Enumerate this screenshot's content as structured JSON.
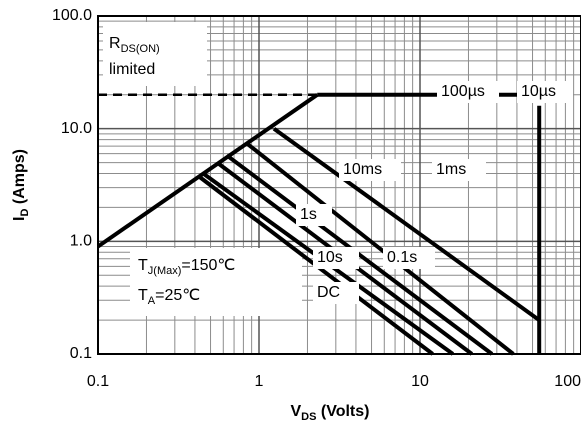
{
  "chart_data": {
    "type": "line",
    "x_log": true,
    "y_log": true,
    "grid": true,
    "minor_grid": true,
    "xlim": [
      0.1,
      100
    ],
    "ylim": [
      0.1,
      100
    ],
    "xticks": [
      0.1,
      1,
      10,
      100
    ],
    "yticks": [
      0.1,
      {
        "value": 1,
        "label": "1.0"
      },
      {
        "value": 10,
        "label": "10.0"
      },
      {
        "value": 100,
        "label": "100.0"
      }
    ],
    "x_label": {
      "main": "V",
      "sub": "DS",
      "rest": " (Volts)"
    },
    "y_label": {
      "main": "I",
      "sub": "D",
      "rest": " (Amps)"
    },
    "rds_note": {
      "main": "R",
      "sub": "DS(ON)",
      "line2": "limited"
    },
    "conditions": [
      {
        "main": "T",
        "sub": "J(Max)",
        "rest": "=150℃"
      },
      {
        "main": "T",
        "sub": "A",
        "rest": "=25℃"
      }
    ],
    "series": [
      {
        "color": "#000000",
        "x": [
          0.1,
          2.3
        ],
        "values": [
          0.9,
          20
        ]
      },
      {
        "color": "#000000",
        "dashed": true,
        "x": [
          0.1,
          2.3
        ],
        "values": [
          20,
          20
        ]
      },
      {
        "name": "100µs",
        "color": "#000000",
        "x": [
          2.3,
          55
        ],
        "values": [
          20,
          20
        ]
      },
      {
        "name": "10µs",
        "color": "#000000",
        "x": [
          55,
          55
        ],
        "values": [
          16,
          0.1
        ]
      },
      {
        "name": "1ms",
        "color": "#000000",
        "x": [
          1.24,
          55
        ],
        "values": [
          10,
          0.2
        ]
      },
      {
        "name": "10ms",
        "color": "#000000",
        "x": [
          0.84,
          38
        ],
        "values": [
          7.4,
          0.1
        ]
      },
      {
        "name": "1s",
        "color": "#000000",
        "x": [
          0.63,
          28
        ],
        "values": [
          5.8,
          0.1
        ]
      },
      {
        "name": "0.1s",
        "color": "#000000",
        "x": [
          0.55,
          21
        ],
        "values": [
          5,
          0.1
        ]
      },
      {
        "name": "10s",
        "color": "#000000",
        "x": [
          0.45,
          16
        ],
        "values": [
          4,
          0.1
        ]
      },
      {
        "name": "DC",
        "color": "#000000",
        "x": [
          0.42,
          12
        ],
        "values": [
          3.8,
          0.1
        ]
      }
    ]
  }
}
